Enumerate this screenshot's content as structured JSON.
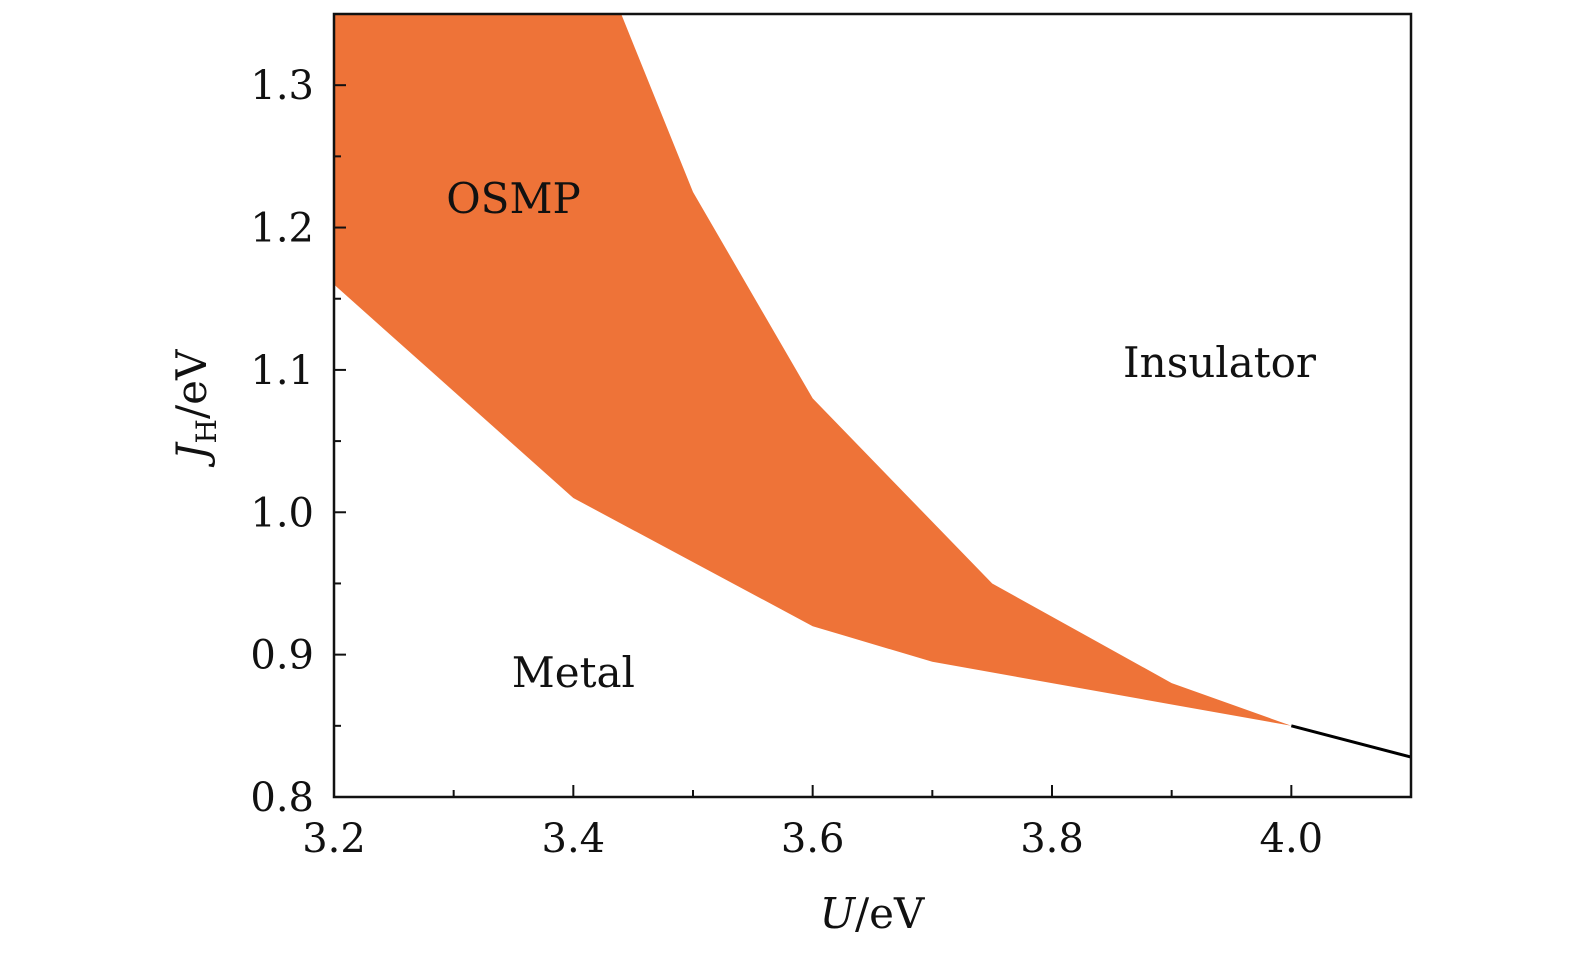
{
  "chart_data": {
    "type": "area",
    "title": "",
    "x_axis": {
      "label_var": "U",
      "label_unit": "/eV",
      "range": [
        3.2,
        4.1
      ],
      "ticks": [
        3.2,
        3.4,
        3.6,
        3.8,
        4.0
      ],
      "tick_labels": [
        "3.2",
        "3.4",
        "3.6",
        "3.8",
        "4.0"
      ],
      "minor_ticks": [
        3.3,
        3.5,
        3.7,
        3.9
      ]
    },
    "y_axis": {
      "label_var": "J",
      "label_sub": "H",
      "label_unit": "/eV",
      "range": [
        0.8,
        1.35
      ],
      "ticks": [
        0.8,
        0.9,
        1.0,
        1.1,
        1.2,
        1.3
      ],
      "tick_labels": [
        "0.8",
        "0.9",
        "1.0",
        "1.1",
        "1.2",
        "1.3"
      ],
      "minor_ticks": [
        0.85,
        0.95,
        1.05,
        1.15,
        1.25
      ]
    },
    "grid": false,
    "regions": [
      {
        "name": "OSMP",
        "color": "#ee7338",
        "lower_boundary": [
          [
            3.2,
            1.16
          ],
          [
            3.28,
            1.1
          ],
          [
            3.4,
            1.01
          ],
          [
            3.6,
            0.92
          ],
          [
            3.7,
            0.895
          ],
          [
            3.9,
            0.865
          ],
          [
            4.0,
            0.85
          ]
        ],
        "upper_boundary": [
          [
            3.2,
            1.35
          ],
          [
            3.44,
            1.35
          ],
          [
            3.5,
            1.225
          ],
          [
            3.6,
            1.08
          ],
          [
            3.75,
            0.95
          ],
          [
            3.9,
            0.88
          ],
          [
            4.0,
            0.85
          ]
        ]
      }
    ],
    "lines": [
      {
        "color": "#000000",
        "points": [
          [
            4.0,
            0.85
          ],
          [
            4.1,
            0.828
          ]
        ]
      }
    ],
    "annotations": [
      {
        "text": "OSMP",
        "x": 3.35,
        "y": 1.22
      },
      {
        "text": "Insulator",
        "x": 3.94,
        "y": 1.105
      },
      {
        "text": "Metal",
        "x": 3.4,
        "y": 0.887
      }
    ]
  }
}
